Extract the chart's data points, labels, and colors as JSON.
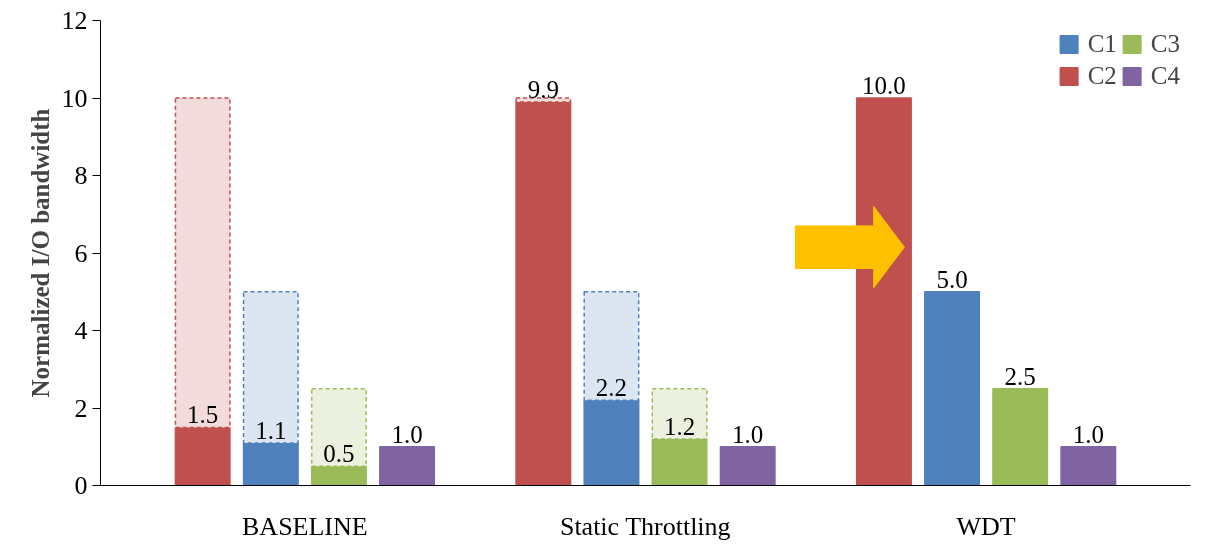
{
  "chart_data": {
    "type": "bar",
    "ylabel": "Normalized I/O bandwidth",
    "stacked": true,
    "categories": [
      null,
      null,
      null,
      null,
      null,
      null,
      null,
      null,
      null,
      null,
      null,
      null,
      null,
      null,
      null,
      null
    ],
    "annotations": [
      "BASELINE",
      "Static Throttling",
      "WDT"
    ],
    "series": [
      {
        "name": "C1",
        "color": "#4f81bd",
        "values": [
          null,
          null,
          1.1,
          null,
          null,
          null,
          null,
          2.2,
          null,
          null,
          null,
          null,
          5.0,
          null,
          null,
          null
        ],
        "value_labels": [
          null,
          null,
          "1.1",
          null,
          null,
          null,
          null,
          "2.2",
          null,
          null,
          null,
          null,
          "5.0",
          null,
          null,
          null
        ]
      },
      {
        "name": "C2",
        "color": "#c0504d",
        "values": [
          null,
          1.5,
          null,
          null,
          null,
          null,
          9.9,
          null,
          null,
          null,
          null,
          10.0,
          null,
          null,
          null,
          null
        ],
        "value_labels": [
          null,
          "1.5",
          null,
          null,
          null,
          null,
          "9.9",
          null,
          null,
          null,
          null,
          "10.0",
          null,
          null,
          null,
          null
        ]
      },
      {
        "name": "C3",
        "color": "#9bbb59",
        "values": [
          null,
          null,
          null,
          0.5,
          null,
          null,
          null,
          null,
          1.2,
          null,
          null,
          null,
          null,
          2.5,
          null,
          null
        ],
        "value_labels": [
          null,
          null,
          null,
          "0.5",
          null,
          null,
          null,
          null,
          "1.2",
          null,
          null,
          null,
          null,
          "2.5",
          null,
          null
        ]
      },
      {
        "name": "C4",
        "color": "#8064a2",
        "values": [
          null,
          null,
          null,
          null,
          1.0,
          null,
          null,
          null,
          null,
          1.0,
          null,
          null,
          null,
          null,
          1.0,
          null
        ],
        "value_labels": [
          null,
          null,
          null,
          null,
          "1.0",
          null,
          null,
          null,
          null,
          "1.0",
          null,
          null,
          null,
          null,
          "1.0",
          null
        ]
      },
      {
        "color": "#dce6f2",
        "values": [
          null,
          null,
          3.9,
          null,
          null,
          null,
          null,
          2.8,
          null,
          null,
          null,
          null,
          null,
          null,
          null,
          null
        ],
        "line_style": "dashed"
      },
      {
        "color": "#f2dcdb",
        "values": [
          null,
          8.5,
          null,
          null,
          null,
          null,
          0.1,
          null,
          null,
          null,
          null,
          null,
          null,
          null,
          null,
          null
        ],
        "line_style": "dashed"
      },
      {
        "color": "#ebf1de",
        "values": [
          null,
          null,
          null,
          2.0,
          null,
          null,
          null,
          null,
          1.3,
          null,
          null,
          null,
          null,
          null,
          null,
          null
        ],
        "line_style": "dashed"
      }
    ],
    "ylim": [
      0,
      12
    ],
    "yticks": [
      0,
      2,
      4,
      6,
      8,
      10,
      12
    ],
    "grid": false,
    "legend": "top right"
  }
}
